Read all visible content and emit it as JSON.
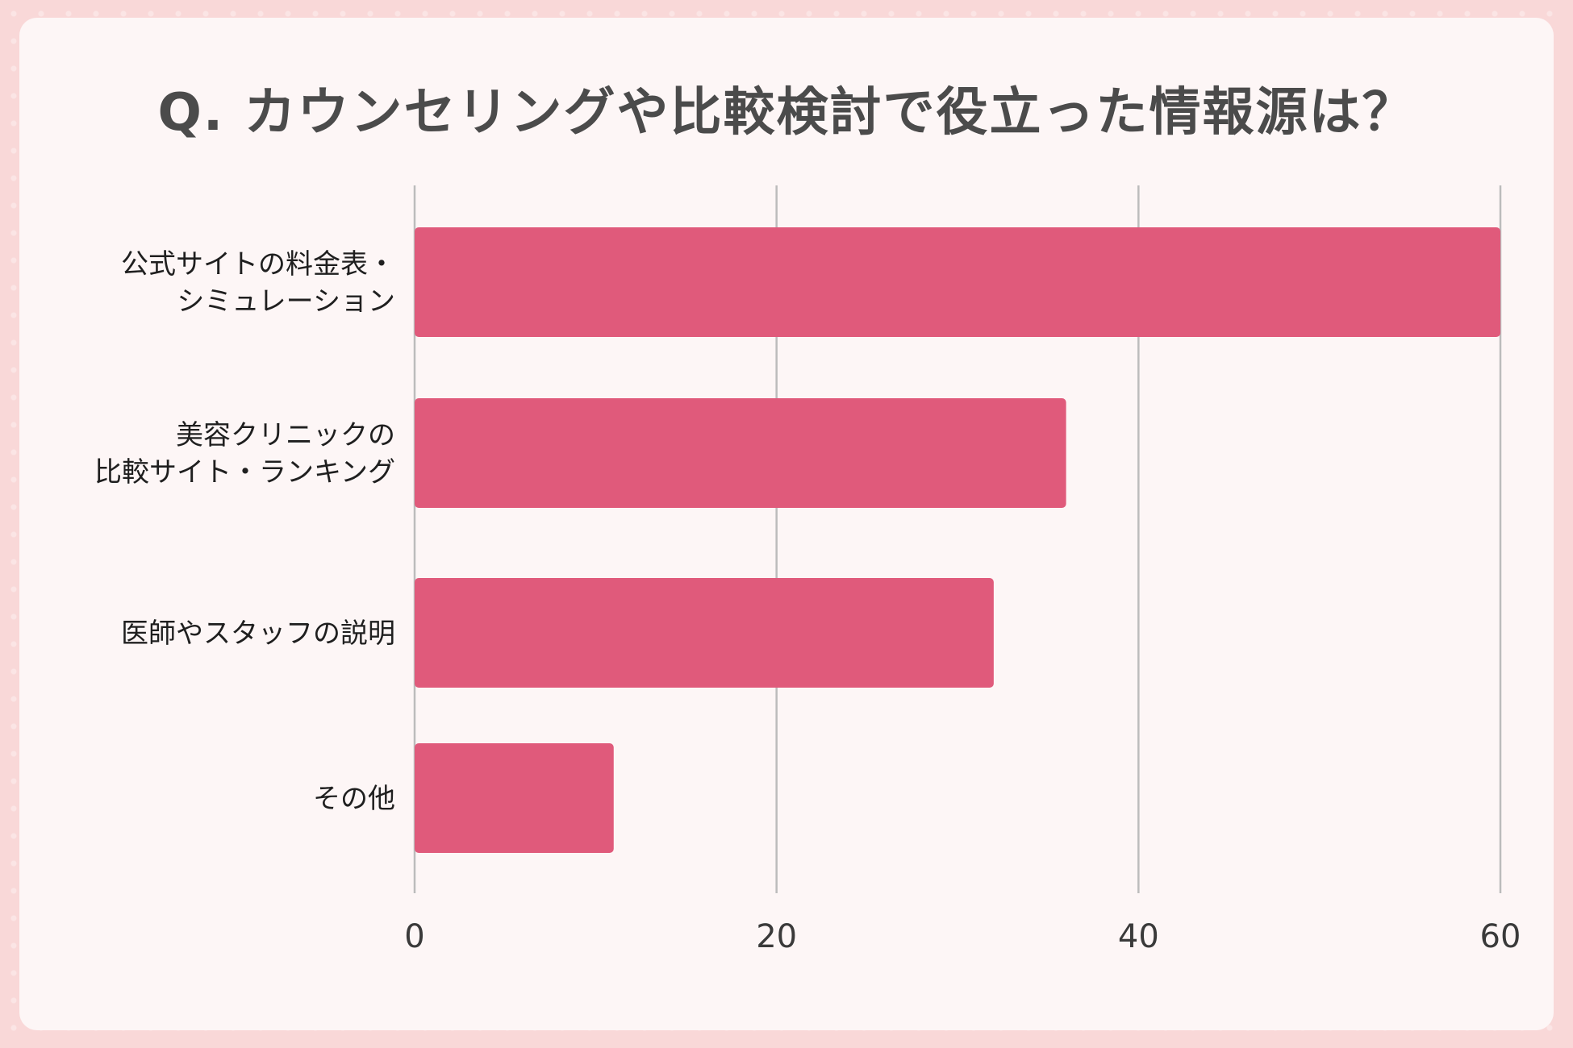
{
  "title": "Q. カウンセリングや比較検討で役立った情報源は？",
  "colors": {
    "bar": "#e05a7b",
    "grid": "#bcbcbc",
    "background": "#fdf6f6"
  },
  "chart_data": {
    "type": "bar",
    "orientation": "horizontal",
    "title": "Q. カウンセリングや比較検討で役立った情報源は？",
    "categories": [
      [
        "公式サイトの料金表・",
        "シミュレーション"
      ],
      [
        "美容クリニックの",
        "比較サイト・ランキング"
      ],
      [
        "医師やスタッフの説明"
      ],
      [
        "その他"
      ]
    ],
    "values": [
      60,
      36,
      32,
      11
    ],
    "xlim": [
      0,
      60
    ],
    "xticks": [
      "0",
      "20",
      "40",
      "60"
    ],
    "grid": true,
    "legend": false
  }
}
